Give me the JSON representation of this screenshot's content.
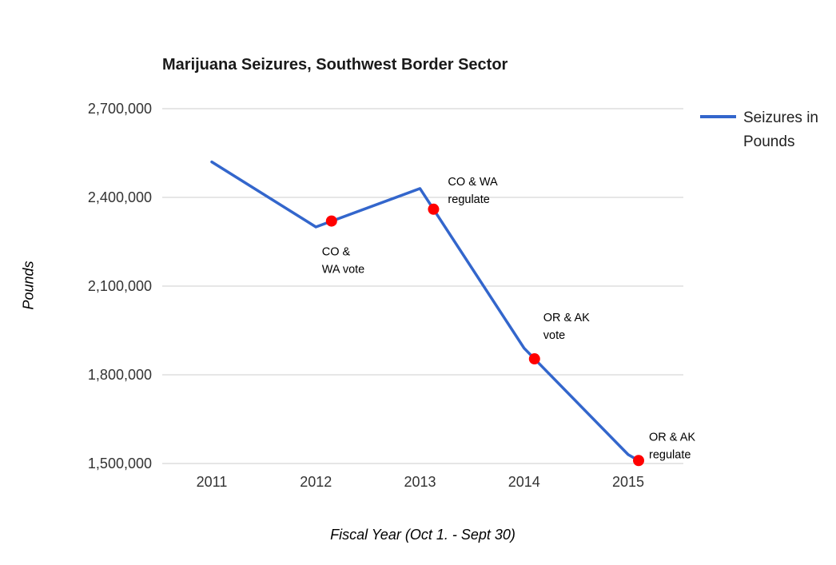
{
  "chart_data": {
    "type": "line",
    "title": "Marijuana Seizures, Southwest Border Sector",
    "xlabel": "Fiscal Year (Oct 1. - Sept 30)",
    "ylabel": "Pounds",
    "legend_label": "Seizures in Pounds",
    "legend_position": "right",
    "grid": true,
    "colors": {
      "line": "#3366cc",
      "marker": "#ff0000",
      "gridline": "#cccccc",
      "tick_text": "#333333",
      "annotation_text": "#000000"
    },
    "xticks": [
      2011,
      2012,
      2013,
      2014,
      2015
    ],
    "yticks": [
      1500000,
      1800000,
      2100000,
      2400000,
      2700000
    ],
    "ylim": [
      1500000,
      2700000
    ],
    "series": [
      {
        "name": "Seizures in Pounds",
        "x": [
          2011,
          2012,
          2013,
          2014,
          2015,
          2015.1
        ],
        "values": [
          2520000,
          2300000,
          2430000,
          1890000,
          1530000,
          1510000
        ]
      }
    ],
    "events": [
      {
        "x": 2012.15,
        "value": 2320000,
        "label_lines": [
          "CO &",
          "WA vote"
        ],
        "label_offset": [
          -12,
          43
        ]
      },
      {
        "x": 2013.13,
        "value": 2360000,
        "label_lines": [
          "CO & WA",
          "regulate"
        ],
        "label_offset": [
          18,
          -30
        ]
      },
      {
        "x": 2014.1,
        "value": 1854000,
        "label_lines": [
          "OR & AK",
          "vote"
        ],
        "label_offset": [
          11,
          -47
        ]
      },
      {
        "x": 2015.1,
        "value": 1510000,
        "label_lines": [
          "OR & AK",
          "regulate"
        ],
        "label_offset": [
          13,
          -25
        ]
      }
    ]
  }
}
